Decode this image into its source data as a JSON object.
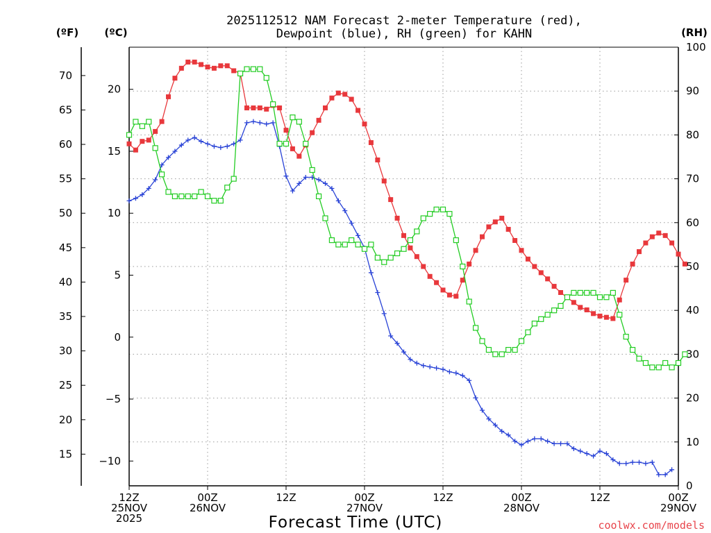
{
  "chart_data": {
    "type": "line",
    "title_line1": "2025112512 NAM Forecast 2-meter Temperature (red),",
    "title_line2": "Dewpoint (blue), RH (green) for KAHN",
    "xlabel": "Forecast Time (UTC)",
    "credit": "coolwx.com/models",
    "units": {
      "fahrenheit": "(ºF)",
      "celsius": "(ºC)",
      "rh": "(RH)"
    },
    "x_range_hours": [
      0,
      84
    ],
    "y_range_celsius": [
      -12,
      23.4
    ],
    "y_range_rh": [
      0,
      100
    ],
    "x_ticks": [
      {
        "hour": 0,
        "line1": "12Z",
        "line2": "25NOV",
        "line3": "2025"
      },
      {
        "hour": 12,
        "line1": "00Z",
        "line2": "26NOV",
        "line3": ""
      },
      {
        "hour": 24,
        "line1": "12Z",
        "line2": "",
        "line3": ""
      },
      {
        "hour": 36,
        "line1": "00Z",
        "line2": "27NOV",
        "line3": ""
      },
      {
        "hour": 48,
        "line1": "12Z",
        "line2": "",
        "line3": ""
      },
      {
        "hour": 60,
        "line1": "00Z",
        "line2": "28NOV",
        "line3": ""
      },
      {
        "hour": 72,
        "line1": "12Z",
        "line2": "",
        "line3": ""
      },
      {
        "hour": 84,
        "line1": "00Z",
        "line2": "29NOV",
        "line3": ""
      }
    ],
    "y_ticks_celsius": [
      20,
      15,
      10,
      5,
      0,
      -5,
      -10
    ],
    "y_ticks_fahrenheit": [
      70,
      65,
      60,
      55,
      50,
      45,
      40,
      35,
      30,
      25,
      20,
      15
    ],
    "y_ticks_rh": [
      100,
      90,
      80,
      70,
      60,
      50,
      40,
      30,
      20,
      10,
      0
    ],
    "series": [
      {
        "name": "2-meter Temperature",
        "color": "#e8383c",
        "marker": "filled-square",
        "axis": "celsius",
        "values": [
          15.6,
          15.1,
          15.8,
          15.9,
          16.6,
          17.4,
          19.4,
          20.9,
          21.7,
          22.2,
          22.2,
          22.0,
          21.8,
          21.7,
          21.9,
          21.9,
          21.5,
          21.3,
          18.5,
          18.5,
          18.5,
          18.4,
          18.7,
          18.5,
          16.7,
          15.2,
          14.6,
          15.5,
          16.5,
          17.5,
          18.5,
          19.3,
          19.7,
          19.6,
          19.2,
          18.3,
          17.2,
          15.7,
          14.3,
          12.6,
          11.1,
          9.6,
          8.2,
          7.2,
          6.5,
          5.7,
          4.9,
          4.4,
          3.8,
          3.4,
          3.3,
          4.6,
          5.9,
          7.0,
          8.1,
          8.9,
          9.3,
          9.6,
          8.7,
          7.8,
          7.0,
          6.3,
          5.7,
          5.2,
          4.7,
          4.1,
          3.6,
          3.2,
          2.8,
          2.4,
          2.2,
          1.9,
          1.7,
          1.6,
          1.5,
          3.0,
          4.6,
          5.9,
          6.9,
          7.6,
          8.1,
          8.4,
          8.2,
          7.6,
          6.7,
          5.9
        ]
      },
      {
        "name": "Dewpoint",
        "color": "#2842d6",
        "marker": "plus",
        "axis": "celsius",
        "values": [
          11.0,
          11.2,
          11.5,
          12.0,
          12.7,
          13.9,
          14.5,
          15.0,
          15.5,
          15.9,
          16.1,
          15.8,
          15.6,
          15.4,
          15.3,
          15.4,
          15.6,
          15.9,
          17.3,
          17.4,
          17.3,
          17.2,
          17.3,
          15.4,
          13.0,
          11.8,
          12.4,
          12.9,
          12.9,
          12.7,
          12.4,
          12.0,
          11.0,
          10.2,
          9.2,
          8.2,
          7.2,
          5.2,
          3.6,
          1.9,
          0.1,
          -0.5,
          -1.2,
          -1.8,
          -2.1,
          -2.3,
          -2.4,
          -2.5,
          -2.6,
          -2.8,
          -2.9,
          -3.1,
          -3.5,
          -4.9,
          -5.9,
          -6.6,
          -7.1,
          -7.6,
          -7.9,
          -8.4,
          -8.7,
          -8.4,
          -8.2,
          -8.2,
          -8.4,
          -8.6,
          -8.6,
          -8.6,
          -9.0,
          -9.2,
          -9.4,
          -9.6,
          -9.2,
          -9.4,
          -9.9,
          -10.2,
          -10.2,
          -10.1,
          -10.1,
          -10.2,
          -10.1,
          -11.1,
          -11.1,
          -10.7
        ]
      },
      {
        "name": "RH",
        "color": "#22cc22",
        "marker": "open-square",
        "axis": "rh",
        "values": [
          80,
          83,
          82,
          83,
          77,
          71,
          67,
          66,
          66,
          66,
          66,
          67,
          66,
          65,
          65,
          68,
          70,
          94,
          95,
          95,
          95,
          93,
          87,
          78,
          78,
          84,
          83,
          78,
          72,
          66,
          61,
          56,
          55,
          55,
          56,
          55,
          54,
          55,
          52,
          51,
          52,
          53,
          54,
          56,
          58,
          61,
          62,
          63,
          63,
          62,
          56,
          50,
          42,
          36,
          33,
          31,
          30,
          30,
          31,
          31,
          33,
          35,
          37,
          38,
          39,
          40,
          41,
          43,
          44,
          44,
          44,
          44,
          43,
          43,
          44,
          39,
          34,
          31,
          29,
          28,
          27,
          27,
          28,
          27,
          28,
          30
        ]
      }
    ]
  }
}
